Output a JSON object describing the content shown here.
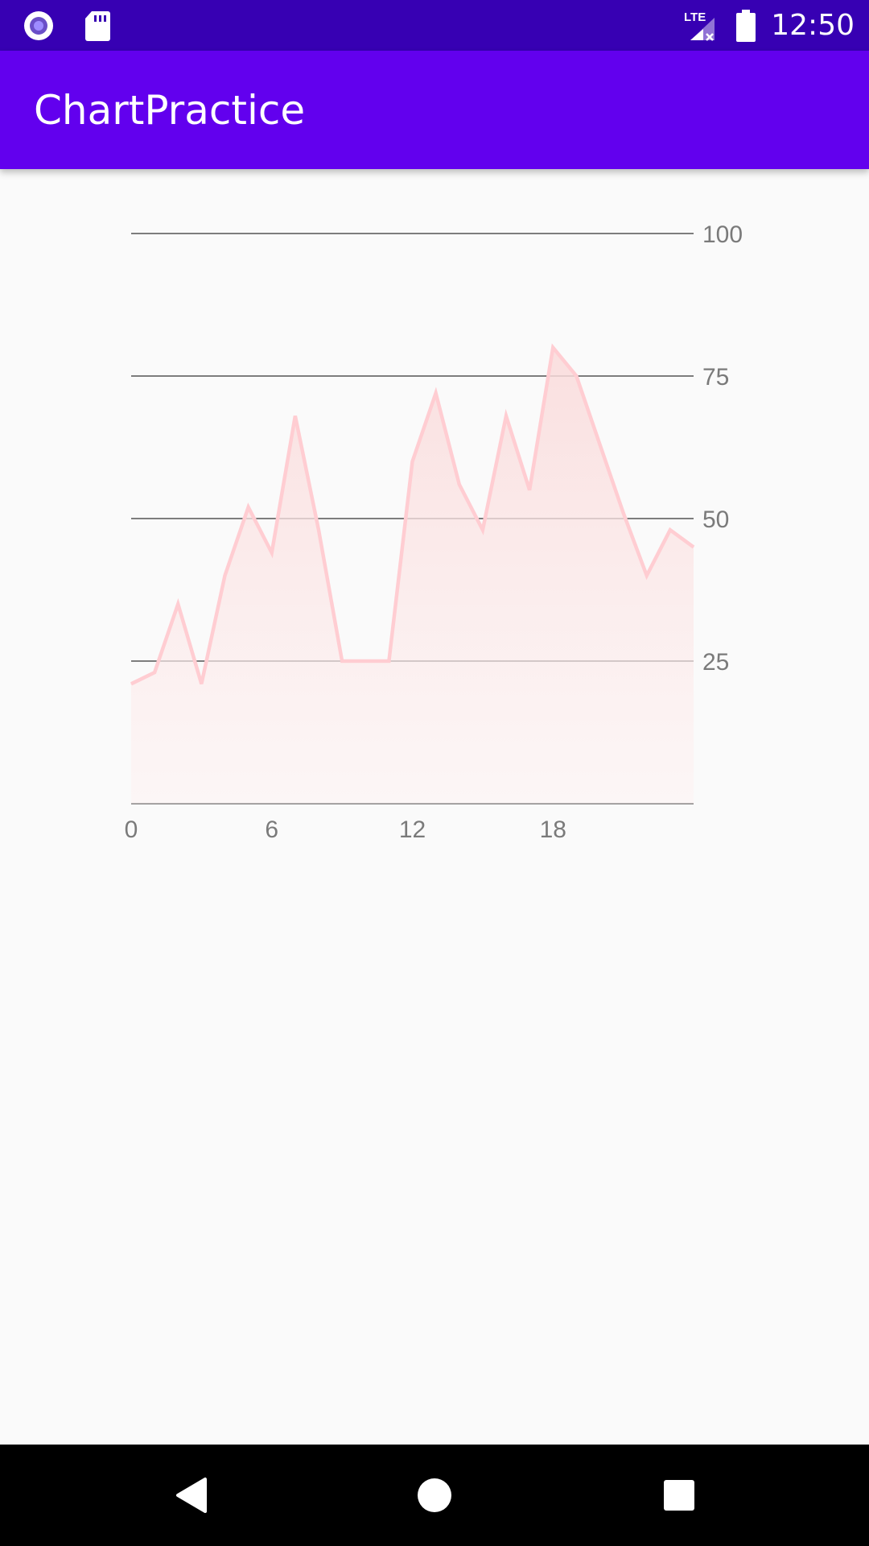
{
  "status_bar": {
    "time": "12:50",
    "network_label": "LTE",
    "icons": [
      "app-notification-icon",
      "sd-card-icon",
      "lte-signal-icon",
      "battery-icon"
    ],
    "background": "#3700b3"
  },
  "app_bar": {
    "title": "ChartPractice",
    "background": "#6200ee"
  },
  "nav_bar": {
    "icons": [
      "back-icon",
      "home-icon",
      "recents-icon"
    ]
  },
  "chart_data": {
    "type": "area",
    "x": [
      0,
      1,
      2,
      3,
      4,
      5,
      6,
      7,
      8,
      9,
      10,
      11,
      12,
      13,
      14,
      15,
      16,
      17,
      18,
      19,
      20,
      21,
      22,
      23,
      24
    ],
    "series": [
      {
        "values": [
          21,
          23,
          35,
          21,
          40,
          52,
          44,
          68,
          48,
          25,
          25,
          25,
          60,
          72,
          56,
          48,
          68,
          55,
          80,
          75,
          63,
          51,
          40,
          48,
          45
        ]
      }
    ],
    "x_ticks": [
      0,
      6,
      12,
      18
    ],
    "y_ticks": [
      25,
      50,
      75,
      100
    ],
    "xlim": [
      0,
      24
    ],
    "ylim": [
      0,
      100
    ],
    "y_axis_side": "right",
    "grid": "horizontal",
    "line_color": "#ffcdd2",
    "fill_color": "#fce4e4"
  }
}
